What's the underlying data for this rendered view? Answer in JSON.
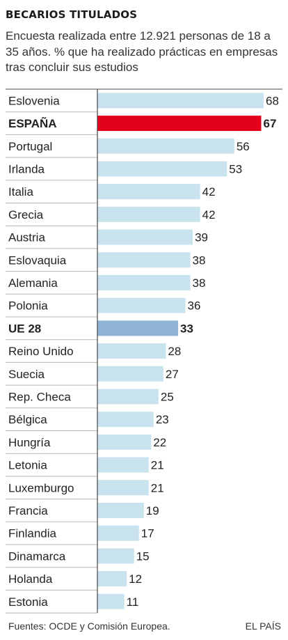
{
  "header": {
    "title": "BECARIOS TITULADOS",
    "subtitle": "Encuesta realizada entre 12.921 personas de 18 a 35 años. % que ha realizado prácticas en empresas tras concluir sus estudios"
  },
  "footer": {
    "source": "Fuentes: OCDE y Comisión Europea.",
    "brand": "EL PAÍS"
  },
  "colors": {
    "default_bar": "#c9e3ee",
    "spain_bar": "#e2001a",
    "eu_bar": "#8fb4d6",
    "separator": "#444444",
    "gridline": "#b5b5b5"
  },
  "chart_data": {
    "type": "bar",
    "orientation": "horizontal",
    "title": "BECARIOS TITULADOS",
    "subtitle": "Encuesta realizada entre 12.921 personas de 18 a 35 años. % que ha realizado prácticas en empresas tras concluir sus estudios",
    "xlim": [
      0,
      70
    ],
    "grid": false,
    "legend": "none",
    "categories": [
      "Eslovenia",
      "ESPAÑA",
      "Portugal",
      "Irlanda",
      "Italia",
      "Grecia",
      "Austria",
      "Eslovaquia",
      "Alemania",
      "Polonia",
      "UE 28",
      "Reino Unido",
      "Suecia",
      "Rep. Checa",
      "Bélgica",
      "Hungría",
      "Letonia",
      "Luxemburgo",
      "Francia",
      "Finlandia",
      "Dinamarca",
      "Holanda",
      "Estonia"
    ],
    "values": [
      68,
      67,
      56,
      53,
      42,
      42,
      39,
      38,
      38,
      36,
      33,
      28,
      27,
      25,
      23,
      22,
      21,
      21,
      19,
      17,
      15,
      12,
      11
    ],
    "highlight": {
      "ESPAÑA": "spain",
      "UE 28": "eu"
    }
  }
}
